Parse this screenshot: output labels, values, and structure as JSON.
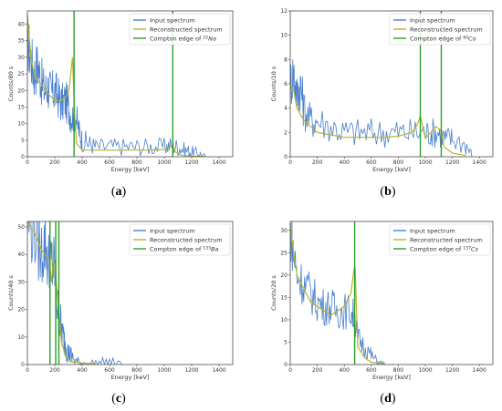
{
  "colors": {
    "input": "#4a7fcc",
    "reconstructed": "#b5b52a",
    "compton": "#2ca02c",
    "axis": "#333333"
  },
  "chart_data": [
    {
      "panel_label": "a",
      "type": "line",
      "xlabel": "Energy [keV]",
      "ylabel": "Counts/80 s",
      "xlim": [
        0,
        1500
      ],
      "ylim": [
        0,
        44
      ],
      "xticks": [
        0,
        200,
        400,
        600,
        800,
        1000,
        1200,
        1400
      ],
      "yticks": [
        0,
        5,
        10,
        15,
        20,
        25,
        30,
        35,
        40
      ],
      "legend_position": "top-right",
      "legend": {
        "input": "Input spectrum",
        "reconstructed": "Reconstructed spectrum",
        "compton_prefix": "Compton edge of ",
        "compton_mass": "22",
        "compton_symbol": "Na"
      },
      "compton_edges_keV": [
        341,
        1062
      ],
      "input_spectrum": {
        "x": [
          0,
          25,
          50,
          75,
          100,
          125,
          150,
          175,
          200,
          225,
          250,
          275,
          300,
          325,
          350,
          375,
          400,
          450,
          500,
          600,
          700,
          800,
          900,
          1000,
          1050,
          1100,
          1150,
          1200,
          1250,
          1300
        ],
        "y": [
          35,
          30,
          25,
          28,
          23,
          20,
          21,
          19,
          20,
          18,
          16,
          17,
          15,
          12,
          13,
          8,
          5,
          4,
          3,
          3,
          3,
          3,
          3,
          3,
          3.5,
          3,
          2,
          1.5,
          1,
          0
        ]
      },
      "reconstructed_spectrum": {
        "x": [
          0,
          25,
          50,
          75,
          100,
          150,
          200,
          250,
          300,
          330,
          345,
          360,
          400,
          450,
          500,
          600,
          700,
          800,
          900,
          1000,
          1040,
          1062,
          1080,
          1120,
          1200,
          1300
        ],
        "y": [
          43,
          30,
          25,
          23,
          22,
          19,
          17,
          17,
          19,
          30,
          12,
          4,
          2,
          2,
          2,
          2,
          2,
          2,
          2,
          2.2,
          3,
          3.5,
          1.5,
          0.5,
          0.2,
          0
        ]
      }
    },
    {
      "panel_label": "b",
      "type": "line",
      "xlabel": "Energy [keV]",
      "ylabel": "Counts/10 s",
      "xlim": [
        0,
        1500
      ],
      "ylim": [
        0,
        12
      ],
      "xticks": [
        0,
        200,
        400,
        600,
        800,
        1000,
        1200,
        1400
      ],
      "yticks": [
        0,
        2,
        4,
        6,
        8,
        10,
        12
      ],
      "legend_position": "top-right",
      "legend": {
        "input": "Input spectrum",
        "reconstructed": "Reconstructed spectrum",
        "compton_prefix": "Compton edge of ",
        "compton_mass": "60",
        "compton_symbol": "Co"
      },
      "compton_edges_keV": [
        963,
        1118
      ],
      "input_spectrum": {
        "x": [
          0,
          25,
          50,
          75,
          100,
          150,
          200,
          300,
          400,
          500,
          600,
          700,
          800,
          900,
          1000,
          1050,
          1100,
          1150,
          1200,
          1300,
          1350
        ],
        "y": [
          6,
          7,
          5,
          6,
          4,
          3,
          3,
          2.5,
          2,
          2,
          2,
          2,
          2,
          2,
          2,
          2,
          2,
          1.5,
          1.5,
          1,
          0
        ]
      },
      "reconstructed_spectrum": {
        "x": [
          0,
          25,
          50,
          100,
          150,
          200,
          300,
          400,
          500,
          600,
          700,
          800,
          900,
          940,
          963,
          1000,
          1080,
          1118,
          1140,
          1200,
          1300
        ],
        "y": [
          6,
          5.5,
          4,
          3,
          2.5,
          2,
          1.8,
          1.6,
          1.6,
          1.6,
          1.6,
          1.7,
          2,
          2.6,
          3.4,
          1.5,
          2.5,
          2.1,
          0.8,
          0.3,
          0.1
        ]
      }
    },
    {
      "panel_label": "c",
      "type": "line",
      "xlabel": "Energy [keV]",
      "ylabel": "Counts/40 s",
      "xlim": [
        0,
        1500
      ],
      "ylim": [
        0,
        52
      ],
      "xticks": [
        0,
        200,
        400,
        600,
        800,
        1000,
        1200,
        1400
      ],
      "yticks": [
        0,
        10,
        20,
        30,
        40,
        50
      ],
      "legend_position": "top-right",
      "legend": {
        "input": "Input spectrum",
        "reconstructed": "Reconstructed spectrum",
        "compton_prefix": "Compton edge of ",
        "compton_mass": "133",
        "compton_symbol": "Ba"
      },
      "compton_edges_keV": [
        165,
        207,
        230
      ],
      "input_spectrum": {
        "x": [
          0,
          50,
          100,
          130,
          160,
          180,
          200,
          220,
          240,
          260,
          280,
          300,
          320,
          360,
          400,
          500,
          600,
          700
        ],
        "y": [
          52,
          50,
          40,
          45,
          35,
          36,
          35,
          20,
          15,
          10,
          8,
          4,
          3,
          1,
          0.5,
          0.5,
          1,
          0
        ]
      },
      "reconstructed_spectrum": {
        "x": [
          0,
          50,
          100,
          130,
          160,
          175,
          190,
          200,
          215,
          230,
          250,
          280,
          320,
          400,
          500
        ],
        "y": [
          52,
          48,
          42,
          40,
          38,
          30,
          38,
          36,
          27,
          18,
          8,
          3,
          1,
          0.5,
          0.2
        ]
      }
    },
    {
      "panel_label": "d",
      "type": "line",
      "xlabel": "Energy [keV]",
      "ylabel": "Counts/20 s",
      "xlim": [
        0,
        1500
      ],
      "ylim": [
        0,
        32
      ],
      "xticks": [
        0,
        200,
        400,
        600,
        800,
        1000,
        1200,
        1400
      ],
      "yticks": [
        0,
        5,
        10,
        15,
        20,
        25,
        30
      ],
      "legend_position": "top-right",
      "legend": {
        "input": "Input spectrum",
        "reconstructed": "Reconstructed spectrum",
        "compton_prefix": "Compton edge of ",
        "compton_mass": "137",
        "compton_symbol": "Cs"
      },
      "compton_edges_keV": [
        477
      ],
      "input_spectrum": {
        "x": [
          0,
          25,
          50,
          100,
          150,
          200,
          250,
          300,
          350,
          400,
          450,
          480,
          500,
          550,
          600,
          650,
          700
        ],
        "y": [
          30,
          25,
          20,
          18,
          16,
          14,
          13,
          13,
          12,
          12,
          12,
          10,
          6,
          4,
          2,
          0.5,
          0
        ]
      },
      "reconstructed_spectrum": {
        "x": [
          0,
          25,
          50,
          100,
          150,
          200,
          300,
          400,
          450,
          470,
          480,
          500,
          550,
          600,
          700
        ],
        "y": [
          31,
          25,
          20,
          17,
          14,
          13,
          11,
          13,
          16,
          21,
          22,
          4,
          1.5,
          0.5,
          0.2
        ]
      }
    }
  ]
}
